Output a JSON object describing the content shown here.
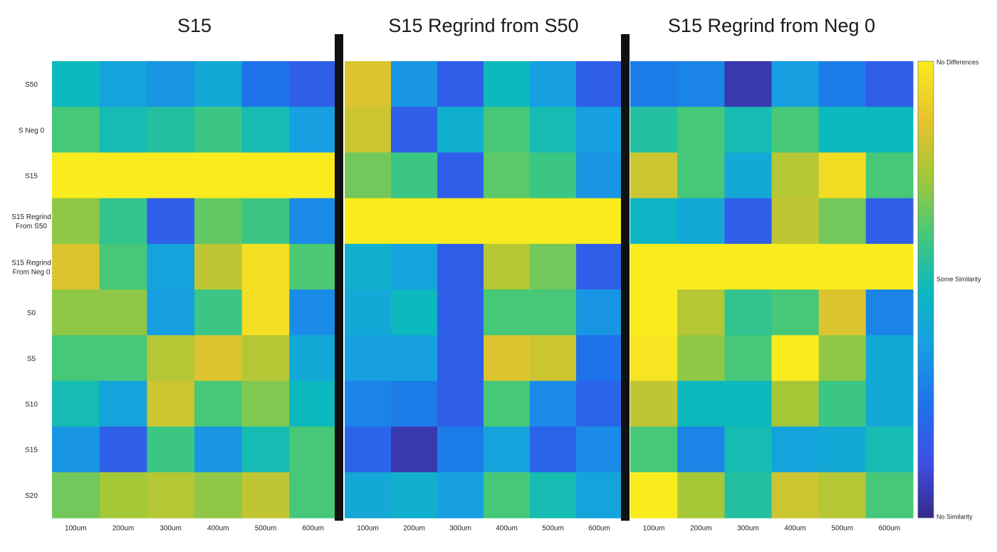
{
  "chart_data": {
    "type": "heatmap",
    "scale": {
      "min": 0,
      "max": 1
    },
    "colorbar": {
      "top_label": "No Differences",
      "mid_label": "Some Similarity",
      "bottom_label": "No Similarity"
    },
    "rows": [
      "S50",
      "S Neg 0",
      "S15",
      "S15 Regrind\nFrom S50",
      "S15 Regrind\nFrom Neg 0",
      "S0",
      "S5",
      "S10",
      "S15",
      "S20"
    ],
    "columns": [
      "100um",
      "200um",
      "300um",
      "400um",
      "500um",
      "600um"
    ],
    "panels": [
      {
        "title": "S15",
        "values": [
          [
            0.5,
            0.4,
            0.35,
            0.42,
            0.25,
            0.18
          ],
          [
            0.62,
            0.52,
            0.55,
            0.6,
            0.52,
            0.38
          ],
          [
            1.0,
            1.0,
            1.0,
            1.0,
            1.0,
            1.0
          ],
          [
            0.72,
            0.58,
            0.18,
            0.66,
            0.6,
            0.32
          ],
          [
            0.85,
            0.62,
            0.4,
            0.8,
            0.96,
            0.63
          ],
          [
            0.72,
            0.72,
            0.38,
            0.6,
            0.96,
            0.32
          ],
          [
            0.62,
            0.62,
            0.78,
            0.85,
            0.78,
            0.42
          ],
          [
            0.52,
            0.4,
            0.82,
            0.62,
            0.7,
            0.5
          ],
          [
            0.35,
            0.18,
            0.6,
            0.35,
            0.52,
            0.62
          ],
          [
            0.68,
            0.75,
            0.78,
            0.72,
            0.8,
            0.62
          ]
        ]
      },
      {
        "title": "S15 Regrind from S50",
        "values": [
          [
            0.85,
            0.35,
            0.18,
            0.5,
            0.38,
            0.18
          ],
          [
            0.82,
            0.18,
            0.45,
            0.62,
            0.52,
            0.38
          ],
          [
            0.68,
            0.6,
            0.18,
            0.65,
            0.6,
            0.35
          ],
          [
            1.0,
            1.0,
            1.0,
            1.0,
            1.0,
            1.0
          ],
          [
            0.45,
            0.4,
            0.18,
            0.78,
            0.68,
            0.18
          ],
          [
            0.42,
            0.5,
            0.18,
            0.62,
            0.62,
            0.35
          ],
          [
            0.38,
            0.38,
            0.18,
            0.85,
            0.82,
            0.25
          ],
          [
            0.3,
            0.28,
            0.18,
            0.62,
            0.32,
            0.2
          ],
          [
            0.2,
            0.05,
            0.28,
            0.4,
            0.2,
            0.32
          ],
          [
            0.42,
            0.45,
            0.38,
            0.62,
            0.52,
            0.4
          ]
        ]
      },
      {
        "title": "S15 Regrind from Neg 0",
        "values": [
          [
            0.28,
            0.3,
            0.05,
            0.38,
            0.28,
            0.18
          ],
          [
            0.55,
            0.62,
            0.52,
            0.62,
            0.5,
            0.5
          ],
          [
            0.82,
            0.62,
            0.42,
            0.78,
            0.95,
            0.62
          ],
          [
            0.48,
            0.42,
            0.18,
            0.8,
            0.68,
            0.18
          ],
          [
            1.0,
            1.0,
            1.0,
            1.0,
            1.0,
            1.0
          ],
          [
            1.0,
            0.78,
            0.58,
            0.62,
            0.85,
            0.3
          ],
          [
            0.98,
            0.72,
            0.62,
            1.0,
            0.72,
            0.42
          ],
          [
            0.8,
            0.5,
            0.5,
            0.75,
            0.6,
            0.42
          ],
          [
            0.62,
            0.3,
            0.52,
            0.4,
            0.42,
            0.52
          ],
          [
            1.0,
            0.75,
            0.55,
            0.82,
            0.78,
            0.62
          ]
        ]
      }
    ]
  }
}
